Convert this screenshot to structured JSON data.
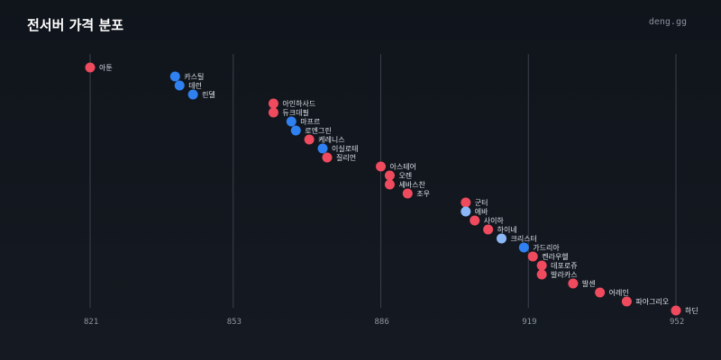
{
  "header": {
    "title": "전서버 가격 분포",
    "brand": "deng.gg"
  },
  "colors": {
    "red": "#ef4a5e",
    "blue": "#2f80f0",
    "light_blue": "#8cb8f8",
    "grid": "#3a414c"
  },
  "chart_data": {
    "type": "scatter",
    "title": "전서버 가격 분포",
    "xlabel": "",
    "ylabel": "",
    "xlim": [
      814,
      954
    ],
    "x_ticks": [
      821,
      853,
      886,
      919,
      952
    ],
    "grid": true,
    "points": [
      {
        "name": "아툰",
        "x": 821,
        "color": "red"
      },
      {
        "name": "카스틸",
        "x": 840,
        "color": "blue"
      },
      {
        "name": "데런",
        "x": 841,
        "color": "blue"
      },
      {
        "name": "린델",
        "x": 844,
        "color": "blue"
      },
      {
        "name": "아인하사드",
        "x": 862,
        "color": "red"
      },
      {
        "name": "듀크데필",
        "x": 862,
        "color": "red"
      },
      {
        "name": "마프르",
        "x": 866,
        "color": "blue"
      },
      {
        "name": "로엔그린",
        "x": 867,
        "color": "blue"
      },
      {
        "name": "케레니스",
        "x": 870,
        "color": "red"
      },
      {
        "name": "이실로테",
        "x": 873,
        "color": "blue"
      },
      {
        "name": "질리언",
        "x": 874,
        "color": "red"
      },
      {
        "name": "아스테어",
        "x": 886,
        "color": "red"
      },
      {
        "name": "오렌",
        "x": 888,
        "color": "red"
      },
      {
        "name": "세바스찬",
        "x": 888,
        "color": "red"
      },
      {
        "name": "조우",
        "x": 892,
        "color": "red"
      },
      {
        "name": "군터",
        "x": 905,
        "color": "red"
      },
      {
        "name": "에바",
        "x": 905,
        "color": "light_blue"
      },
      {
        "name": "사이하",
        "x": 907,
        "color": "red"
      },
      {
        "name": "하이네",
        "x": 910,
        "color": "red"
      },
      {
        "name": "크리스터",
        "x": 913,
        "color": "light_blue"
      },
      {
        "name": "가드리아",
        "x": 918,
        "color": "blue"
      },
      {
        "name": "켄라우헬",
        "x": 920,
        "color": "red"
      },
      {
        "name": "데포로쥬",
        "x": 922,
        "color": "red"
      },
      {
        "name": "발라카스",
        "x": 922,
        "color": "red"
      },
      {
        "name": "발센",
        "x": 929,
        "color": "red"
      },
      {
        "name": "어레인",
        "x": 935,
        "color": "red"
      },
      {
        "name": "파아그리오",
        "x": 941,
        "color": "red"
      },
      {
        "name": "하딘",
        "x": 952,
        "color": "red"
      }
    ]
  }
}
